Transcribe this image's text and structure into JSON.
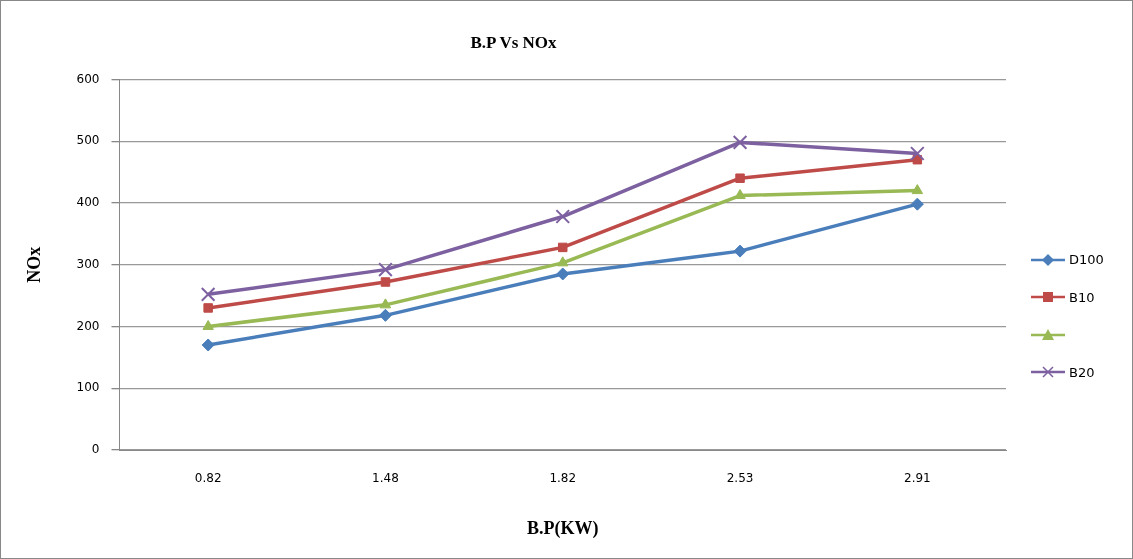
{
  "chart_data": {
    "type": "line",
    "title": "B.P Vs NOx",
    "xlabel": "B.P(KW)",
    "ylabel": "NOx",
    "categories": [
      "0.82",
      "1.48",
      "1.82",
      "2.53",
      "2.91"
    ],
    "series": [
      {
        "name": "D100",
        "color": "#4a7ebb",
        "marker": "diamond",
        "values": [
          170,
          218,
          285,
          322,
          398
        ]
      },
      {
        "name": "B10",
        "color": "#be4b48",
        "marker": "square",
        "values": [
          230,
          272,
          328,
          440,
          470
        ]
      },
      {
        "color": "#98b954",
        "marker": "triangle",
        "values": [
          200,
          235,
          303,
          412,
          420
        ]
      },
      {
        "name": "B20",
        "color": "#7d60a0",
        "marker": "cross",
        "values": [
          252,
          292,
          378,
          498,
          480
        ]
      }
    ],
    "ylim": [
      0,
      600
    ],
    "yticks": [
      0,
      100,
      200,
      300,
      400,
      500,
      600
    ],
    "grid": "y",
    "legend": "right",
    "line_style": "solid"
  }
}
